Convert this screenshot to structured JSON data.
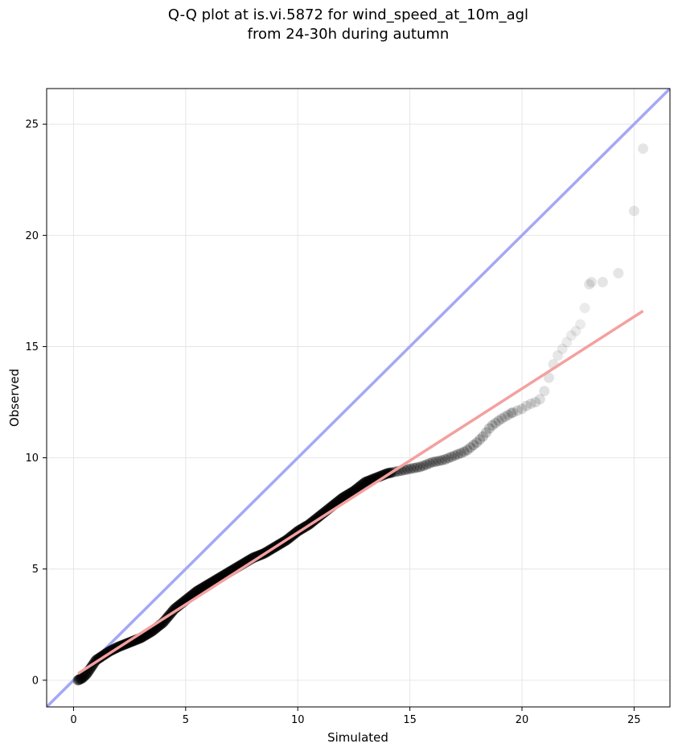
{
  "chart_data": {
    "type": "scatter",
    "title_lines": [
      "Q-Q plot at is.vi.5872 for wind_speed_at_10m_agl",
      "from 24-30h during autumn"
    ],
    "xlabel": "Simulated",
    "ylabel": "Observed",
    "xlim": [
      -1.2,
      26.6
    ],
    "ylim": [
      -1.2,
      26.6
    ],
    "xticks": [
      0,
      5,
      10,
      15,
      20,
      25
    ],
    "yticks": [
      0,
      5,
      10,
      15,
      20,
      25
    ],
    "xtick_labels": [
      "0",
      "5",
      "10",
      "15",
      "20",
      "25"
    ],
    "ytick_labels": [
      "0",
      "5",
      "10",
      "15",
      "20",
      "25"
    ],
    "grid": true,
    "series": [
      {
        "kind": "quantile_points",
        "color": "#000000",
        "x": [
          0.2,
          0.4,
          0.6,
          0.8,
          1.0,
          1.3,
          1.6,
          2.0,
          2.5,
          3.0,
          3.5,
          4.0,
          4.5,
          5.0,
          5.5,
          6.0,
          6.5,
          7.0,
          7.5,
          8.0,
          8.5,
          9.0,
          9.5,
          10.0,
          10.5,
          11.0,
          11.5,
          12.0,
          12.5,
          13.0,
          13.5,
          14.0,
          14.5,
          15.0,
          15.5,
          16.0,
          16.5,
          17.0,
          17.5,
          18.0,
          18.3,
          18.6,
          19.0,
          19.5,
          20.0,
          20.3,
          20.6,
          20.9,
          21.0,
          21.1,
          21.2,
          21.3,
          21.4,
          21.6,
          21.8,
          22.0,
          22.2,
          22.5,
          22.7,
          23.0,
          23.1,
          23.6,
          24.3,
          25.0,
          25.4
        ],
        "y": [
          0.0,
          0.1,
          0.3,
          0.6,
          0.9,
          1.1,
          1.3,
          1.5,
          1.7,
          1.9,
          2.2,
          2.6,
          3.2,
          3.6,
          4.0,
          4.3,
          4.6,
          4.9,
          5.2,
          5.5,
          5.7,
          6.0,
          6.3,
          6.7,
          7.0,
          7.4,
          7.8,
          8.2,
          8.5,
          8.9,
          9.1,
          9.3,
          9.4,
          9.5,
          9.6,
          9.8,
          9.9,
          10.1,
          10.3,
          10.7,
          11.0,
          11.4,
          11.7,
          12.0,
          12.2,
          12.4,
          12.5,
          12.7,
          13.0,
          13.3,
          13.6,
          13.9,
          14.2,
          14.6,
          14.9,
          15.2,
          15.5,
          15.8,
          16.2,
          17.8,
          17.9,
          17.9,
          18.3,
          21.1,
          23.9
        ]
      },
      {
        "kind": "fit_line",
        "color": "#f4a0a0",
        "x": [
          0.2,
          25.4
        ],
        "y": [
          0.3,
          16.6
        ]
      },
      {
        "kind": "identity_line",
        "color": "#a3a8f5",
        "x": [
          -1.2,
          26.6
        ],
        "y": [
          -1.2,
          26.6
        ]
      }
    ]
  }
}
